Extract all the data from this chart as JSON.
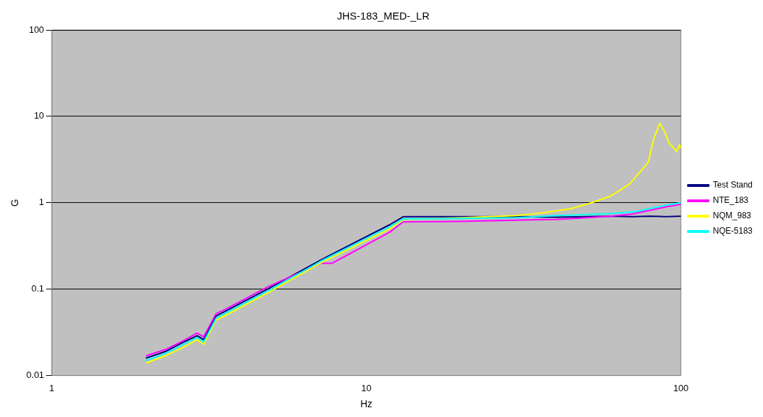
{
  "chart_data": {
    "type": "line",
    "title": "JHS-183_MED-_LR",
    "xlabel": "Hz",
    "ylabel": "G",
    "log": "xy",
    "xlim": [
      1,
      100
    ],
    "xticks": [
      1,
      10,
      100
    ],
    "ylim": [
      0.01,
      100
    ],
    "yticks": [
      0.01,
      0.1,
      1,
      10,
      100
    ],
    "grid": "y",
    "legend": "right",
    "marker": "none",
    "line_style": "solid",
    "series": [
      {
        "name": "Test Stand",
        "color": "#000080",
        "x": [
          2,
          2.3,
          2.6,
          2.9,
          3.04,
          3.33,
          3.58,
          4.9,
          7.2,
          11.9,
          13.1,
          20,
          30,
          40,
          50,
          60,
          70,
          80,
          90,
          100
        ],
        "values": [
          0.016,
          0.019,
          0.024,
          0.029,
          0.026,
          0.049,
          0.056,
          0.102,
          0.22,
          0.56,
          0.69,
          0.69,
          0.69,
          0.68,
          0.69,
          0.7,
          0.69,
          0.7,
          0.69,
          0.7
        ]
      },
      {
        "name": "NTE_183",
        "color": "#ff00ff",
        "x": [
          2,
          2.3,
          2.6,
          2.9,
          3.04,
          3.33,
          3.58,
          4.9,
          7.2,
          7.8,
          11.9,
          13.1,
          20,
          30,
          40,
          50,
          60,
          70,
          80,
          90,
          100
        ],
        "values": [
          0.017,
          0.02,
          0.025,
          0.031,
          0.028,
          0.052,
          0.059,
          0.108,
          0.2,
          0.2,
          0.46,
          0.6,
          0.61,
          0.63,
          0.64,
          0.67,
          0.7,
          0.74,
          0.82,
          0.9,
          0.96
        ]
      },
      {
        "name": "NQM_983",
        "color": "#ffff00",
        "x": [
          2,
          2.3,
          2.6,
          2.9,
          3.04,
          3.33,
          3.58,
          4.9,
          7.2,
          11.9,
          13.1,
          20,
          30,
          36,
          45,
          52,
          60,
          68.7,
          78.8,
          82,
          85.7,
          88.6,
          91.7,
          95,
          97,
          99,
          100
        ],
        "values": [
          0.014,
          0.017,
          0.021,
          0.026,
          0.023,
          0.044,
          0.05,
          0.092,
          0.203,
          0.5,
          0.64,
          0.67,
          0.71,
          0.76,
          0.86,
          1.0,
          1.2,
          1.65,
          2.93,
          5.5,
          8.3,
          6.8,
          4.9,
          4.3,
          3.9,
          4.7,
          4.3
        ]
      },
      {
        "name": "NQE-5183",
        "color": "#00ffff",
        "x": [
          2,
          2.3,
          2.6,
          2.9,
          3.04,
          3.33,
          3.58,
          4.9,
          7.2,
          11.9,
          13.1,
          20,
          30,
          40,
          50,
          60,
          72,
          80,
          90,
          100
        ],
        "values": [
          0.015,
          0.018,
          0.0225,
          0.0275,
          0.0245,
          0.046,
          0.053,
          0.097,
          0.213,
          0.53,
          0.65,
          0.66,
          0.67,
          0.71,
          0.73,
          0.75,
          0.79,
          0.86,
          0.94,
          1.0
        ]
      }
    ]
  }
}
